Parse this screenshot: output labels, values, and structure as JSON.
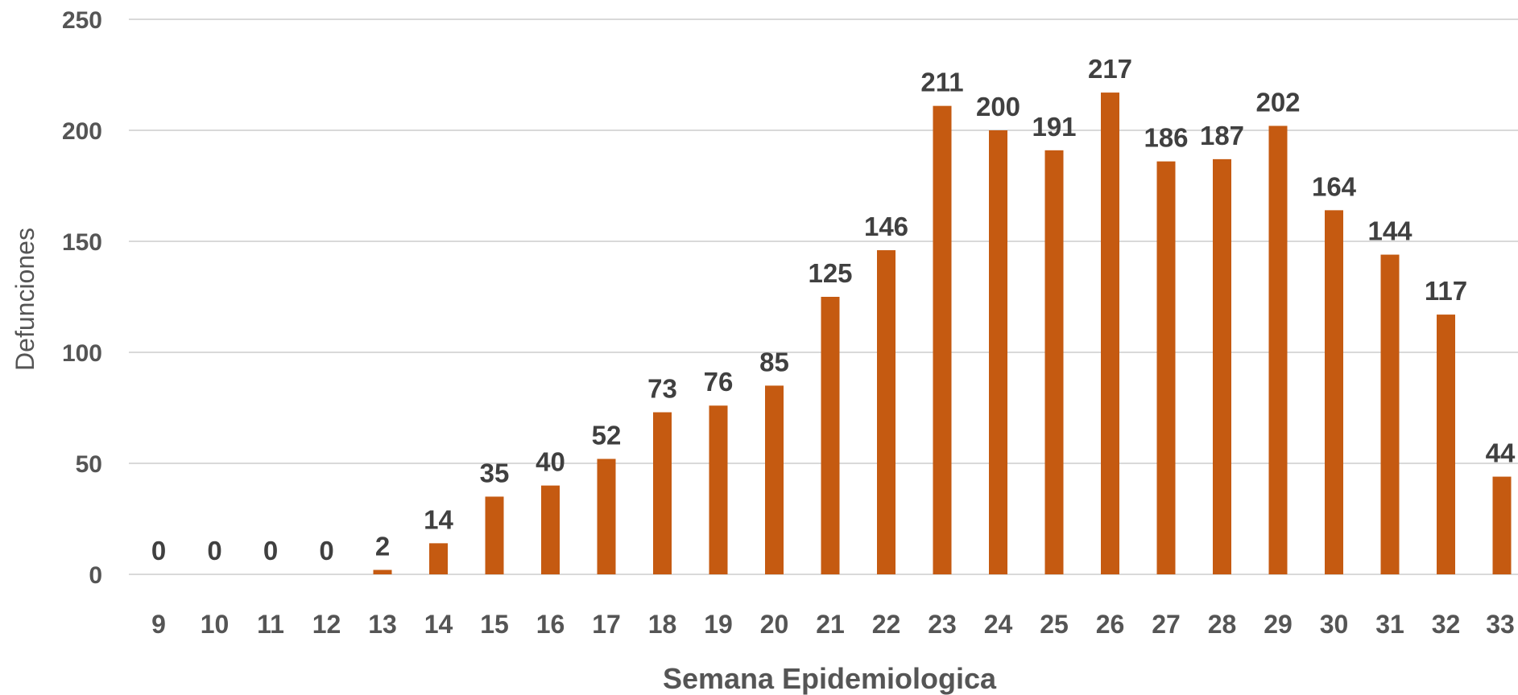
{
  "chart_data": {
    "type": "bar",
    "categories": [
      "9",
      "10",
      "11",
      "12",
      "13",
      "14",
      "15",
      "16",
      "17",
      "18",
      "19",
      "20",
      "21",
      "22",
      "23",
      "24",
      "25",
      "26",
      "27",
      "28",
      "29",
      "30",
      "31",
      "32",
      "33"
    ],
    "values": [
      0,
      0,
      0,
      0,
      2,
      14,
      35,
      40,
      52,
      73,
      76,
      85,
      125,
      146,
      211,
      200,
      191,
      217,
      186,
      187,
      202,
      164,
      144,
      117,
      44
    ],
    "xlabel": "Semana Epidemiologica",
    "ylabel": "Defunciones",
    "ylim": [
      0,
      250
    ],
    "yticks": [
      "0",
      "50",
      "100",
      "150",
      "200",
      "250"
    ],
    "grid": true,
    "legend": "none",
    "bar_color": "#c55a11"
  }
}
